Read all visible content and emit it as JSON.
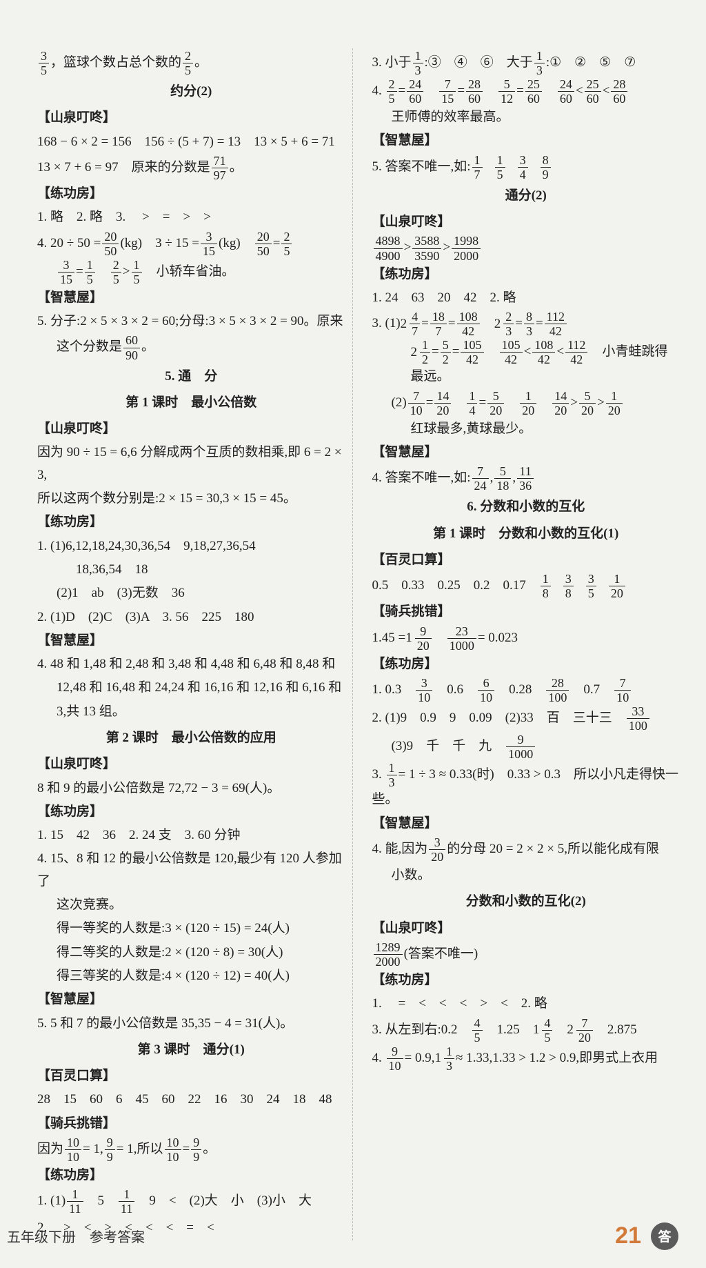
{
  "footer": {
    "left": "五年级下册　参考答案",
    "page": "21",
    "badge": "答"
  },
  "left": {
    "open": {
      "pre": "，篮球个数占总个数的",
      "frac1": {
        "n": "3",
        "d": "5"
      },
      "frac2": {
        "n": "2",
        "d": "5"
      },
      "post": "。"
    },
    "yuefen2": {
      "title": "约分(2)",
      "sq": "【山泉叮咚】",
      "l1": "168 − 6 × 2 = 156　156 ÷ (5 + 7) = 13　13 × 5 + 6 = 71",
      "l2a": "13 × 7 + 6 = 97　原来的分数是",
      "l2f": {
        "n": "71",
        "d": "97"
      },
      "l2b": "。",
      "lg": "【练功房】",
      "p1": "1. 略　2. 略　3. 　>　=　>　>",
      "p4a": "4. 20 ÷ 50 =",
      "p4f1": {
        "n": "20",
        "d": "50"
      },
      "p4b": "(kg)　3 ÷ 15 =",
      "p4f2": {
        "n": "3",
        "d": "15"
      },
      "p4c": "(kg)　",
      "p4f3": {
        "n": "20",
        "d": "50"
      },
      "p4d": "=",
      "p4f4": {
        "n": "2",
        "d": "5"
      },
      "p4_2f1": {
        "n": "3",
        "d": "15"
      },
      "p4_2a": "=",
      "p4_2f2": {
        "n": "1",
        "d": "5"
      },
      "p4_2b": "　",
      "p4_2f3": {
        "n": "2",
        "d": "5"
      },
      "p4_2c": ">",
      "p4_2f4": {
        "n": "1",
        "d": "5"
      },
      "p4_2d": "　小轿车省油。",
      "zh": "【智慧屋】",
      "p5a": "5. 分子:2 × 5 × 3 × 2 = 60;分母:3 × 5 × 3 × 2 = 90。原来",
      "p5b": "这个分数是",
      "p5f": {
        "n": "60",
        "d": "90"
      },
      "p5c": "。"
    },
    "tongfen": {
      "title": "5. 通　分",
      "k1": {
        "title": "第 1 课时　最小公倍数",
        "sq": "【山泉叮咚】",
        "l1": "因为 90 ÷ 15 = 6,6 分解成两个互质的数相乘,即 6 = 2 × 3,",
        "l2": "所以这两个数分别是:2 × 15 = 30,3 × 15 = 45。",
        "lg": "【练功房】",
        "p1a": "1. (1)6,12,18,24,30,36,54　9,18,27,36,54",
        "p1b": "18,36,54　18",
        "p1c": "(2)1　ab　(3)无数　36",
        "p2": "2. (1)D　(2)C　(3)A　3. 56　225　180",
        "zh": "【智慧屋】",
        "p4a": "4. 48 和 1,48 和 2,48 和 3,48 和 4,48 和 6,48 和 8,48 和",
        "p4b": "12,48 和 16,48 和 24,24 和 16,16 和 12,16 和 6,16 和",
        "p4c": "3,共 13 组。"
      },
      "k2": {
        "title": "第 2 课时　最小公倍数的应用",
        "sq": "【山泉叮咚】",
        "l1": "8 和 9 的最小公倍数是 72,72 − 3 = 69(人)。",
        "lg": "【练功房】",
        "p1": "1. 15　42　36　2. 24 支　3. 60 分钟",
        "p4a": "4. 15、8 和 12 的最小公倍数是 120,最少有 120 人参加了",
        "p4b": "这次竞赛。",
        "p4c": "得一等奖的人数是:3 × (120 ÷ 15) = 24(人)",
        "p4d": "得二等奖的人数是:2 × (120 ÷ 8) = 30(人)",
        "p4e": "得三等奖的人数是:4 × (120 ÷ 12) = 40(人)",
        "zh": "【智慧屋】",
        "p5": "5. 5 和 7 的最小公倍数是 35,35 − 4 = 31(人)。"
      },
      "k3": {
        "title": "第 3 课时　通分(1)",
        "bl": "【百灵口算】",
        "bl1": "28　15　60　6　45　60　22　16　30　24　18　48",
        "qb": "【骑兵挑错】",
        "qb1a": "因为",
        "qb1f1": {
          "n": "10",
          "d": "10"
        },
        "qb1b": "= 1,",
        "qb1f2": {
          "n": "9",
          "d": "9"
        },
        "qb1c": "= 1,所以",
        "qb1f3": {
          "n": "10",
          "d": "10"
        },
        "qb1d": "=",
        "qb1f4": {
          "n": "9",
          "d": "9"
        },
        "qb1e": "。",
        "lg": "【练功房】",
        "p1a": "1. (1)",
        "p1f1": {
          "n": "1",
          "d": "11"
        },
        "p1b": "　5　",
        "p1f2": {
          "n": "1",
          "d": "11"
        },
        "p1c": "　9　<　(2)大　小　(3)小　大",
        "p2": "2. 　>　<　>　<　<　<　=　<"
      }
    }
  },
  "right": {
    "tf1_cont": {
      "p3a": "3. 小于",
      "p3f1": {
        "n": "1",
        "d": "3"
      },
      "p3b": ":③　④　⑥　大于",
      "p3f2": {
        "n": "1",
        "d": "3"
      },
      "p3c": ":①　②　⑤　⑦",
      "p4a": "4. ",
      "p4f1": {
        "n": "2",
        "d": "5"
      },
      "p4eq1": "=",
      "p4f2": {
        "n": "24",
        "d": "60"
      },
      "p4sp1": "　",
      "p4f3": {
        "n": "7",
        "d": "15"
      },
      "p4eq2": "=",
      "p4f4": {
        "n": "28",
        "d": "60"
      },
      "p4sp2": "　",
      "p4f5": {
        "n": "5",
        "d": "12"
      },
      "p4eq3": "=",
      "p4f6": {
        "n": "25",
        "d": "60"
      },
      "p4sp3": "　",
      "p4f7": {
        "n": "24",
        "d": "60"
      },
      "p4lt1": "<",
      "p4f8": {
        "n": "25",
        "d": "60"
      },
      "p4lt2": "<",
      "p4f9": {
        "n": "28",
        "d": "60"
      },
      "p4t": "王师傅的效率最高。",
      "zh": "【智慧屋】",
      "p5a": "5. 答案不唯一,如:",
      "p5f1": {
        "n": "1",
        "d": "7"
      },
      "p5f2": {
        "n": "1",
        "d": "5"
      },
      "p5f3": {
        "n": "3",
        "d": "4"
      },
      "p5f4": {
        "n": "8",
        "d": "9"
      }
    },
    "tf2": {
      "title": "通分(2)",
      "sq": "【山泉叮咚】",
      "sqf1": {
        "n": "4898",
        "d": "4900"
      },
      "sqg1": ">",
      "sqf2": {
        "n": "3588",
        "d": "3590"
      },
      "sqg2": ">",
      "sqf3": {
        "n": "1998",
        "d": "2000"
      },
      "lg": "【练功房】",
      "p1": "1. 24　63　20　42　2. 略",
      "p3a": "3. (1)",
      "p3m1": {
        "w": "2",
        "n": "4",
        "d": "7"
      },
      "p3e1": "=",
      "p3f1": {
        "n": "18",
        "d": "7"
      },
      "p3e2": "=",
      "p3f2": {
        "n": "108",
        "d": "42"
      },
      "p3sp1": "　",
      "p3m2": {
        "w": "2",
        "n": "2",
        "d": "3"
      },
      "p3e3": "=",
      "p3f3": {
        "n": "8",
        "d": "3"
      },
      "p3e4": "=",
      "p3f4": {
        "n": "112",
        "d": "42"
      },
      "p3b_m1": {
        "w": "2",
        "n": "1",
        "d": "2"
      },
      "p3b_e1": "=",
      "p3b_f1": {
        "n": "5",
        "d": "2"
      },
      "p3b_e2": "=",
      "p3b_f2": {
        "n": "105",
        "d": "42"
      },
      "p3b_sp": "　",
      "p3b_f3": {
        "n": "105",
        "d": "42"
      },
      "p3b_lt1": "<",
      "p3b_f4": {
        "n": "108",
        "d": "42"
      },
      "p3b_lt2": "<",
      "p3b_f5": {
        "n": "112",
        "d": "42"
      },
      "p3b_t": "　小青蛙跳得最远。",
      "p3c_a": "(2)",
      "p3c_f1": {
        "n": "7",
        "d": "10"
      },
      "p3c_e1": "=",
      "p3c_f2": {
        "n": "14",
        "d": "20"
      },
      "p3c_sp1": "　",
      "p3c_f3": {
        "n": "1",
        "d": "4"
      },
      "p3c_e2": "=",
      "p3c_f4": {
        "n": "5",
        "d": "20"
      },
      "p3c_sp2": "　",
      "p3c_f5": {
        "n": "1",
        "d": "20"
      },
      "p3c_sp3": "　",
      "p3c_f6": {
        "n": "14",
        "d": "20"
      },
      "p3c_g1": ">",
      "p3c_f7": {
        "n": "5",
        "d": "20"
      },
      "p3c_g2": ">",
      "p3c_f8": {
        "n": "1",
        "d": "20"
      },
      "p3d": "红球最多,黄球最少。",
      "zh": "【智慧屋】",
      "p4a": "4. 答案不唯一,如:",
      "p4f1": {
        "n": "7",
        "d": "24"
      },
      "p4c1": ",",
      "p4f2": {
        "n": "5",
        "d": "18"
      },
      "p4c2": ",",
      "p4f3": {
        "n": "11",
        "d": "36"
      }
    },
    "sec6": {
      "title": "6. 分数和小数的互化",
      "k1": {
        "title": "第 1 课时　分数和小数的互化(1)",
        "bl": "【百灵口算】",
        "bl_a": "0.5　0.33　0.25　0.2　0.17　",
        "blf1": {
          "n": "1",
          "d": "8"
        },
        "blf2": {
          "n": "3",
          "d": "8"
        },
        "blf3": {
          "n": "3",
          "d": "5"
        },
        "blf4": {
          "n": "1",
          "d": "20"
        },
        "qb": "【骑兵挑错】",
        "qb_a": "1.45 =",
        "qb_m": {
          "w": "1",
          "n": "9",
          "d": "20"
        },
        "qb_b": "　",
        "qb_f": {
          "n": "23",
          "d": "1000"
        },
        "qb_c": "= 0.023",
        "lg": "【练功房】",
        "p1a": "1. 0.3　",
        "p1f1": {
          "n": "3",
          "d": "10"
        },
        "p1b": "　0.6　",
        "p1f2": {
          "n": "6",
          "d": "10"
        },
        "p1c": "　0.28　",
        "p1f3": {
          "n": "28",
          "d": "100"
        },
        "p1d": "　0.7　",
        "p1f4": {
          "n": "7",
          "d": "10"
        },
        "p2a": "2. (1)9　0.9　9　0.09　(2)33　百　三十三　",
        "p2f": {
          "n": "33",
          "d": "100"
        },
        "p2b": "(3)9　千　千　九　",
        "p2f2": {
          "n": "9",
          "d": "1000"
        },
        "p3a": "3. ",
        "p3f": {
          "n": "1",
          "d": "3"
        },
        "p3b": "= 1 ÷ 3 ≈ 0.33(时)　0.33 > 0.3　所以小凡走得快一些。",
        "zh": "【智慧屋】",
        "p4a": "4. 能,因为",
        "p4f": {
          "n": "3",
          "d": "20"
        },
        "p4b": "的分母 20 = 2 × 2 × 5,所以能化成有限",
        "p4c": "小数。"
      },
      "k2": {
        "title": "分数和小数的互化(2)",
        "sq": "【山泉叮咚】",
        "sqf": {
          "n": "1289",
          "d": "2000"
        },
        "sqt": "(答案不唯一)",
        "lg": "【练功房】",
        "p1": "1. 　=　<　<　<　>　<　2. 略",
        "p3a": "3. 从左到右:0.2　",
        "p3f1": {
          "n": "4",
          "d": "5"
        },
        "p3b": "　1.25　",
        "p3m1": {
          "w": "1",
          "n": "4",
          "d": "5"
        },
        "p3c": "　",
        "p3m2": {
          "w": "2",
          "n": "7",
          "d": "20"
        },
        "p3d": "　2.875",
        "p4a": "4. ",
        "p4f1": {
          "n": "9",
          "d": "10"
        },
        "p4b": "= 0.9,",
        "p4m1": {
          "w": "1",
          "n": "1",
          "d": "3"
        },
        "p4c": "≈ 1.33,1.33 > 1.2 > 0.9,即男式上衣用"
      }
    }
  }
}
